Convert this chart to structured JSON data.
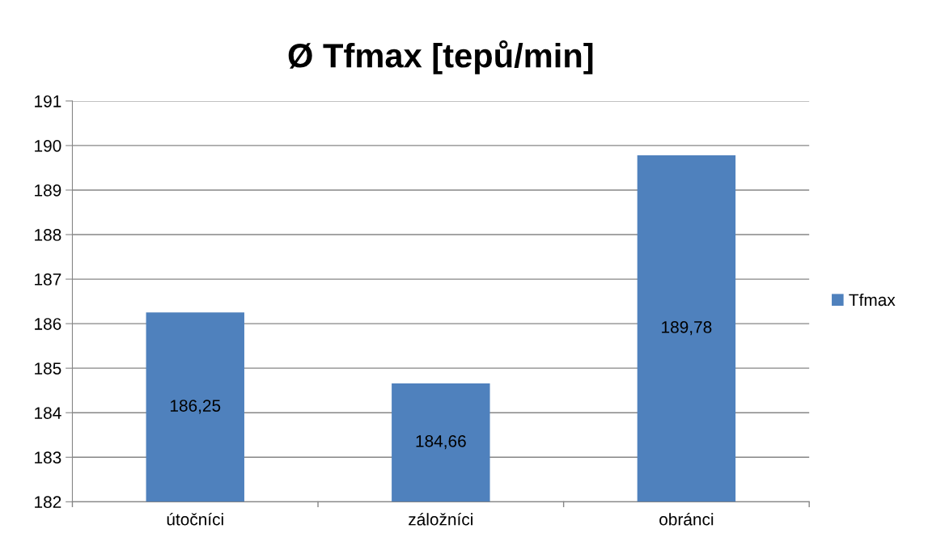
{
  "chart_data": {
    "type": "bar",
    "title": "Ø Tfmax [tepů/min]",
    "categories": [
      "útočníci",
      "záložníci",
      "obránci"
    ],
    "series": [
      {
        "name": "Tfmax",
        "color": "#4f81bd",
        "values": [
          186.25,
          184.66,
          189.78
        ],
        "value_labels": [
          "186,25",
          "184,66",
          "189,78"
        ]
      }
    ],
    "ylim": [
      182,
      191
    ],
    "yticks": [
      182,
      183,
      184,
      185,
      186,
      187,
      188,
      189,
      190,
      191
    ],
    "grid": "y",
    "legend": "right"
  }
}
